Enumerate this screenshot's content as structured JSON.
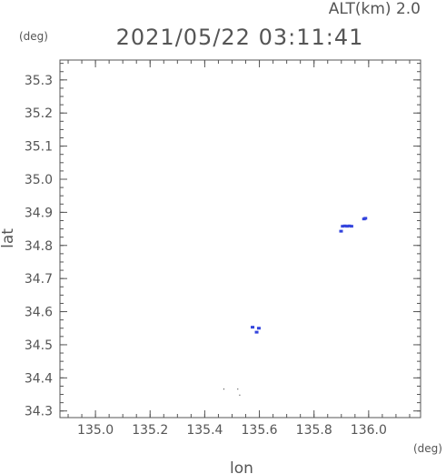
{
  "chart_data": {
    "type": "scatter",
    "title": "2021/05/22 03:11:41",
    "altitude_label": "ALT(km) 2.0",
    "xlabel": "lon",
    "ylabel": "lat",
    "x_unit": "(deg)",
    "y_unit": "(deg)",
    "xlim": [
      134.87,
      136.19
    ],
    "ylim": [
      34.28,
      35.36
    ],
    "x_ticks": [
      "135.0",
      "135.2",
      "135.4",
      "135.6",
      "135.8",
      "136.0"
    ],
    "y_ticks": [
      "34.3",
      "34.4",
      "34.5",
      "34.6",
      "34.7",
      "34.8",
      "34.9",
      "35.0",
      "35.1",
      "35.2",
      "35.3"
    ],
    "grid": false,
    "points": [
      {
        "x": 135.905,
        "y": 34.858,
        "color": "#3344dd"
      },
      {
        "x": 135.913,
        "y": 34.859,
        "color": "#3344dd"
      },
      {
        "x": 135.921,
        "y": 34.858,
        "color": "#3344dd"
      },
      {
        "x": 135.929,
        "y": 34.859,
        "color": "#3344dd"
      },
      {
        "x": 135.937,
        "y": 34.858,
        "color": "#3344dd"
      },
      {
        "x": 135.899,
        "y": 34.843,
        "color": "#3344dd"
      },
      {
        "x": 135.983,
        "y": 34.88,
        "color": "#3344dd"
      },
      {
        "x": 135.988,
        "y": 34.882,
        "color": "#3344dd"
      },
      {
        "x": 135.575,
        "y": 34.553,
        "color": "#3344dd"
      },
      {
        "x": 135.59,
        "y": 34.538,
        "color": "#3344dd"
      },
      {
        "x": 135.598,
        "y": 34.55,
        "color": "#3344dd"
      },
      {
        "x": 135.47,
        "y": 34.366,
        "color": "#222222"
      },
      {
        "x": 135.521,
        "y": 34.366,
        "color": "#222222"
      },
      {
        "x": 135.528,
        "y": 34.348,
        "color": "#222222"
      }
    ]
  }
}
